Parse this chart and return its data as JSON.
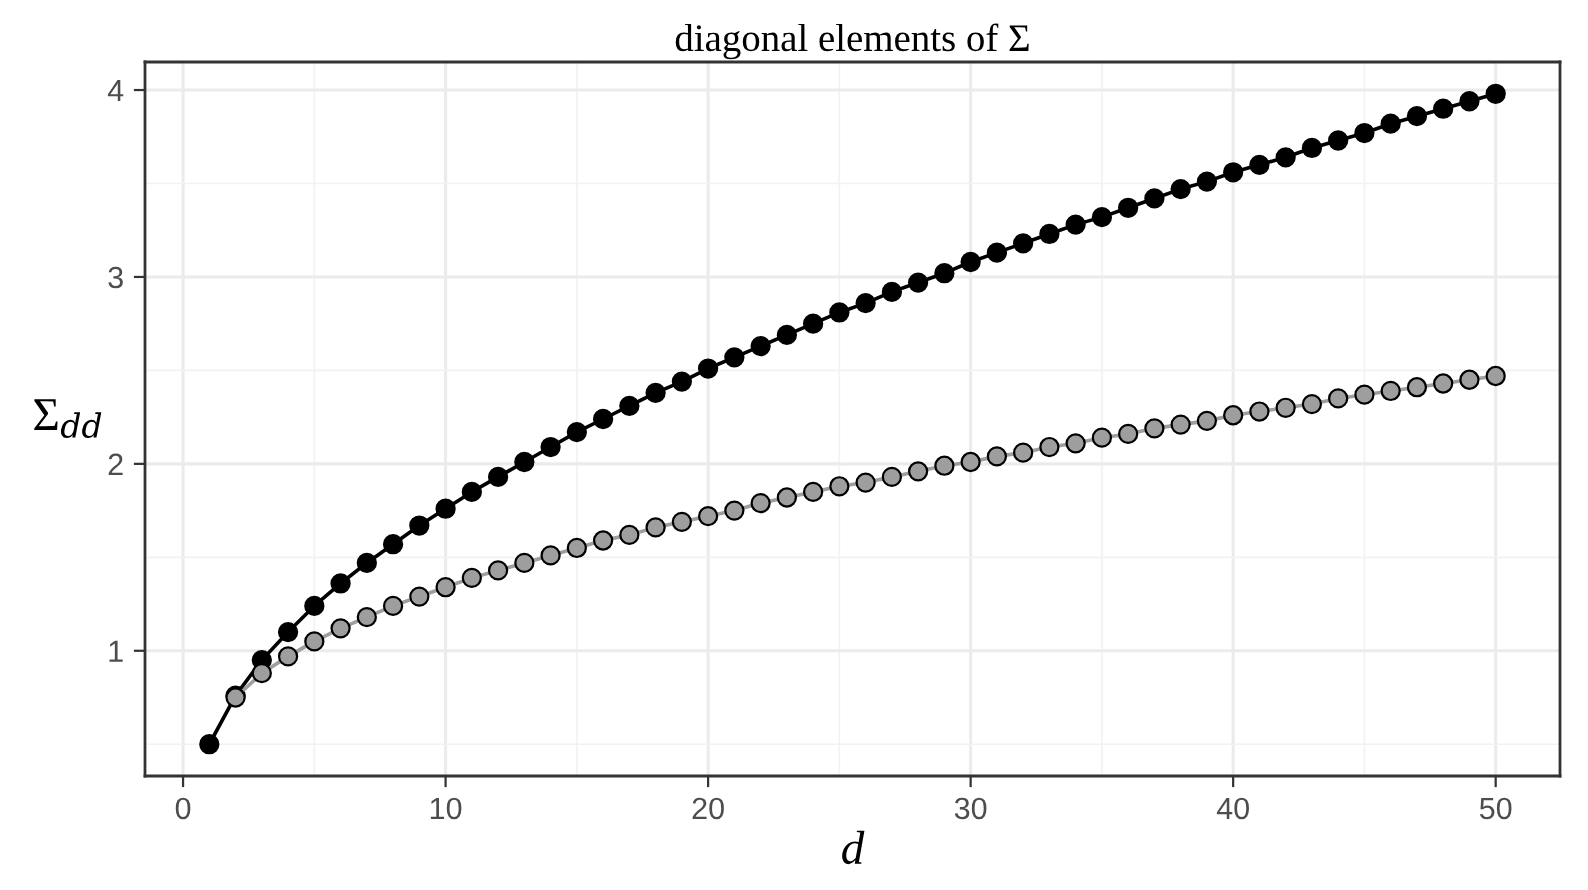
{
  "chart_data": {
    "type": "line",
    "title": "diagonal elements of Σ",
    "xlabel": "d",
    "ylabel": "Σ$_{dd}$",
    "x": [
      1,
      2,
      3,
      4,
      5,
      6,
      7,
      8,
      9,
      10,
      11,
      12,
      13,
      14,
      15,
      16,
      17,
      18,
      19,
      20,
      21,
      22,
      23,
      24,
      25,
      26,
      27,
      28,
      29,
      30,
      31,
      32,
      33,
      34,
      35,
      36,
      37,
      38,
      39,
      40,
      41,
      42,
      43,
      44,
      45,
      46,
      47,
      48,
      49,
      50
    ],
    "series": [
      {
        "color": "#9e9e9e",
        "values": [
          null,
          0.75,
          0.88,
          0.97,
          1.05,
          1.12,
          1.18,
          1.24,
          1.29,
          1.34,
          1.39,
          1.43,
          1.47,
          1.51,
          1.55,
          1.59,
          1.62,
          1.66,
          1.69,
          1.72,
          1.75,
          1.79,
          1.82,
          1.85,
          1.88,
          1.9,
          1.93,
          1.96,
          1.99,
          2.01,
          2.04,
          2.06,
          2.09,
          2.11,
          2.14,
          2.16,
          2.19,
          2.21,
          2.23,
          2.26,
          2.28,
          2.3,
          2.32,
          2.35,
          2.37,
          2.39,
          2.41,
          2.43,
          2.45,
          2.47
        ]
      },
      {
        "color": "#000000",
        "values": [
          0.5,
          0.76,
          0.95,
          1.1,
          1.24,
          1.36,
          1.47,
          1.57,
          1.67,
          1.76,
          1.85,
          1.93,
          2.01,
          2.09,
          2.17,
          2.24,
          2.31,
          2.38,
          2.44,
          2.51,
          2.57,
          2.63,
          2.69,
          2.75,
          2.81,
          2.86,
          2.92,
          2.97,
          3.02,
          3.08,
          3.13,
          3.18,
          3.23,
          3.28,
          3.32,
          3.37,
          3.42,
          3.47,
          3.51,
          3.56,
          3.6,
          3.64,
          3.69,
          3.73,
          3.77,
          3.82,
          3.86,
          3.9,
          3.94,
          3.98
        ]
      }
    ],
    "xlim": [
      -1.45,
      52.45
    ],
    "ylim": [
      0.33,
      4.15
    ],
    "xticks": [
      0,
      10,
      20,
      30,
      40,
      50
    ],
    "yticks": [
      1,
      2,
      3,
      4
    ],
    "grid": true,
    "marker": "circle",
    "line_style": "solid"
  }
}
